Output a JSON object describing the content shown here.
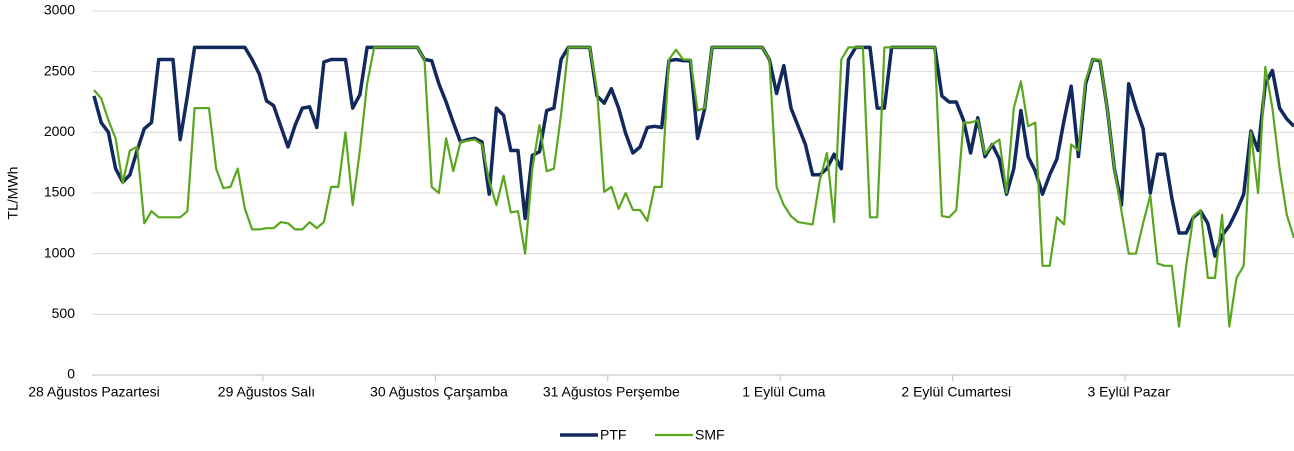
{
  "chart_data": {
    "type": "line",
    "y_label": "TL/MWh",
    "categories": [
      "28 Ağustos Pazartesi",
      null,
      null,
      null,
      null,
      null,
      null,
      null,
      null,
      null,
      null,
      null,
      null,
      null,
      null,
      null,
      null,
      null,
      null,
      null,
      null,
      null,
      null,
      null,
      "29 Ağustos Salı",
      null,
      null,
      null,
      null,
      null,
      null,
      null,
      null,
      null,
      null,
      null,
      null,
      null,
      null,
      null,
      null,
      null,
      null,
      null,
      null,
      null,
      null,
      null,
      "30 Ağustos Çarşamba",
      null,
      null,
      null,
      null,
      null,
      null,
      null,
      null,
      null,
      null,
      null,
      null,
      null,
      null,
      null,
      null,
      null,
      null,
      null,
      null,
      null,
      null,
      null,
      "31 Ağustos Perşembe",
      null,
      null,
      null,
      null,
      null,
      null,
      null,
      null,
      null,
      null,
      null,
      null,
      null,
      null,
      null,
      null,
      null,
      null,
      null,
      null,
      null,
      null,
      null,
      "1 Eylül Cuma",
      null,
      null,
      null,
      null,
      null,
      null,
      null,
      null,
      null,
      null,
      null,
      null,
      null,
      null,
      null,
      null,
      null,
      null,
      null,
      null,
      null,
      null,
      null,
      "2 Eylül Cumartesi",
      null,
      null,
      null,
      null,
      null,
      null,
      null,
      null,
      null,
      null,
      null,
      null,
      null,
      null,
      null,
      null,
      null,
      null,
      null,
      null,
      null,
      null,
      null,
      "3 Eylül Pazar",
      null,
      null,
      null,
      null,
      null,
      null,
      null,
      null,
      null,
      null,
      null,
      null,
      null,
      null,
      null,
      null,
      null,
      null,
      null,
      null,
      null,
      null,
      null
    ],
    "series": [
      {
        "name": "PTF",
        "color": "#12295e",
        "values": [
          2300,
          2080,
          2000,
          1700,
          1590,
          1650,
          1850,
          2030,
          2080,
          2600,
          2600,
          2600,
          1940,
          2300,
          2700,
          2700,
          2700,
          2700,
          2700,
          2700,
          2700,
          2700,
          2600,
          2480,
          2260,
          2220,
          2050,
          1880,
          2060,
          2200,
          2210,
          2040,
          2580,
          2600,
          2600,
          2600,
          2200,
          2310,
          2700,
          2700,
          2700,
          2700,
          2700,
          2700,
          2700,
          2700,
          2600,
          2590,
          2400,
          2250,
          2080,
          1920,
          1940,
          1950,
          1920,
          1490,
          2200,
          2140,
          1850,
          1850,
          1290,
          1810,
          1840,
          2180,
          2200,
          2600,
          2700,
          2700,
          2700,
          2700,
          2300,
          2240,
          2360,
          2200,
          1990,
          1830,
          1880,
          2040,
          2050,
          2040,
          2590,
          2600,
          2590,
          2590,
          1950,
          2200,
          2700,
          2700,
          2700,
          2700,
          2700,
          2700,
          2700,
          2700,
          2600,
          2320,
          2550,
          2200,
          2050,
          1900,
          1650,
          1650,
          1700,
          1820,
          1700,
          2600,
          2700,
          2700,
          2700,
          2200,
          2200,
          2700,
          2700,
          2700,
          2700,
          2700,
          2700,
          2700,
          2300,
          2250,
          2250,
          2100,
          1830,
          2120,
          1800,
          1900,
          1780,
          1490,
          1700,
          2180,
          1800,
          1680,
          1490,
          1650,
          1780,
          2100,
          2380,
          1800,
          2400,
          2600,
          2590,
          2200,
          1700,
          1400,
          2400,
          2200,
          2030,
          1500,
          1820,
          1820,
          1460,
          1170,
          1170,
          1300,
          1350,
          1250,
          980,
          1150,
          1230,
          1350,
          1490,
          2010,
          1850,
          2400,
          2510,
          2200,
          2110,
          2050
        ]
      },
      {
        "name": "SMF",
        "color": "#5aa61e",
        "values": [
          2350,
          2280,
          2100,
          1950,
          1580,
          1850,
          1880,
          1250,
          1350,
          1300,
          1300,
          1300,
          1300,
          1350,
          2200,
          2200,
          2200,
          1700,
          1540,
          1550,
          1700,
          1370,
          1200,
          1200,
          1210,
          1210,
          1260,
          1250,
          1200,
          1200,
          1260,
          1210,
          1260,
          1550,
          1550,
          2000,
          1400,
          1850,
          2400,
          2700,
          2700,
          2700,
          2700,
          2700,
          2700,
          2700,
          2600,
          1550,
          1500,
          1950,
          1680,
          1920,
          1930,
          1940,
          1900,
          1600,
          1400,
          1640,
          1340,
          1350,
          1000,
          1700,
          2060,
          1680,
          1700,
          2150,
          2700,
          2700,
          2700,
          2700,
          2350,
          1510,
          1550,
          1370,
          1500,
          1360,
          1360,
          1270,
          1550,
          1550,
          2600,
          2680,
          2600,
          2600,
          2180,
          2200,
          2700,
          2700,
          2700,
          2700,
          2700,
          2700,
          2700,
          2700,
          2600,
          1550,
          1400,
          1310,
          1260,
          1250,
          1240,
          1600,
          1830,
          1260,
          2600,
          2700,
          2700,
          2700,
          1300,
          1300,
          2700,
          2700,
          2700,
          2700,
          2700,
          2700,
          2700,
          2700,
          1310,
          1300,
          1360,
          2080,
          2080,
          2100,
          1820,
          1900,
          1940,
          1500,
          2200,
          2420,
          2050,
          2080,
          900,
          900,
          1300,
          1240,
          1900,
          1850,
          2430,
          2600,
          2600,
          2200,
          1700,
          1350,
          1000,
          1000,
          1250,
          1480,
          920,
          900,
          900,
          400,
          900,
          1310,
          1360,
          800,
          800,
          1320,
          400,
          800,
          900,
          2000,
          1500,
          2540,
          2200,
          1700,
          1320,
          1130
        ]
      }
    ],
    "ylim": [
      0,
      3000
    ],
    "yticks": [
      0,
      500,
      1000,
      1500,
      2000,
      2500,
      3000
    ],
    "grid": true,
    "legend": "bottom"
  }
}
